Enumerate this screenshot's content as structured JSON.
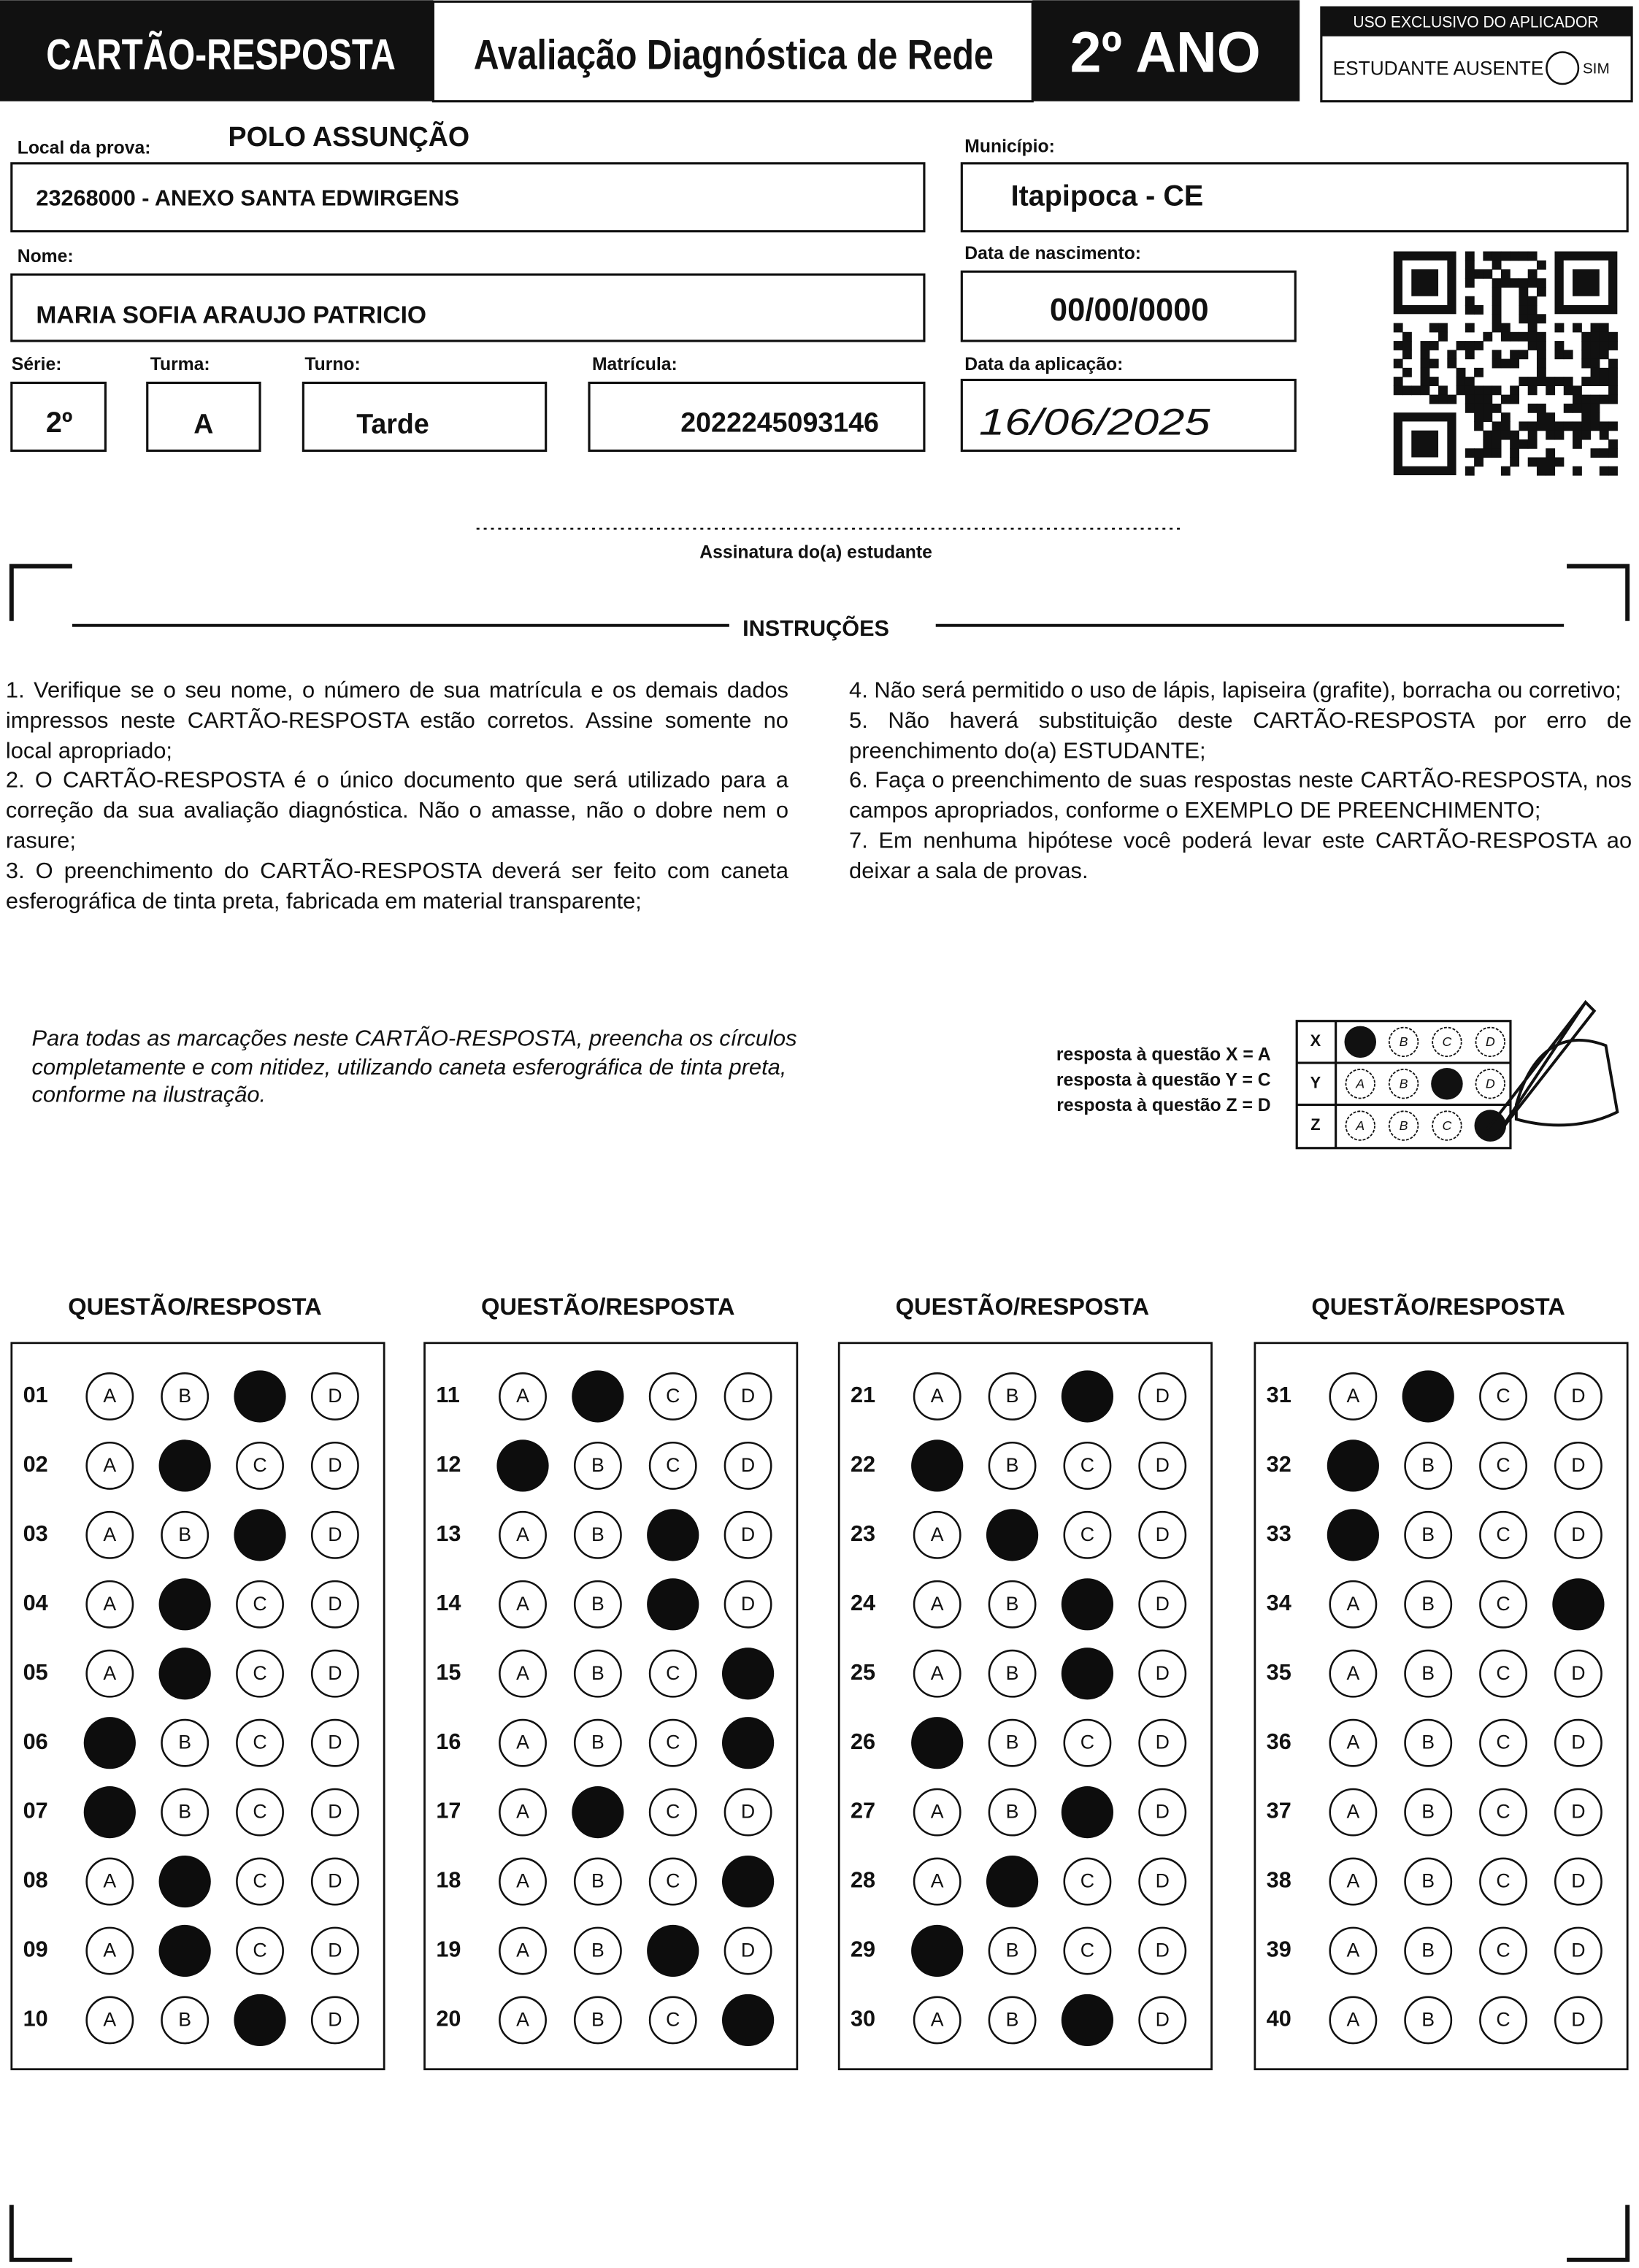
{
  "header": {
    "title": "CARTÃO-RESPOSTA",
    "subtitle": "Avaliação Diagnóstica de Rede",
    "grade": "2º ANO",
    "applicator_label": "USO EXCLUSIVO DO APLICADOR",
    "absent_label": "ESTUDANTE AUSENTE",
    "absent_option": "SIM"
  },
  "fields": {
    "local_label": "Local da prova:",
    "local_polo": "POLO ASSUNÇÃO",
    "local_value": "23268000 - ANEXO SANTA EDWIRGENS",
    "municipio_label": "Município:",
    "municipio_value": "Itapipoca - CE",
    "nome_label": "Nome:",
    "nome_value": "MARIA SOFIA ARAUJO PATRICIO",
    "nascimento_label": "Data de nascimento:",
    "nascimento_value": "00/00/0000",
    "serie_label": "Série:",
    "serie_value": "2º",
    "turma_label": "Turma:",
    "turma_value": "A",
    "turno_label": "Turno:",
    "turno_value": "Tarde",
    "matricula_label": "Matrícula:",
    "matricula_value": "2022245093146",
    "aplicacao_label": "Data da aplicação:",
    "aplicacao_value": "16/06/2025"
  },
  "signature_label": "Assinatura do(a) estudante",
  "instructions": {
    "title": "INSTRUÇÕES",
    "items": [
      "1. Verifique se o seu nome, o número de sua matrícula e os demais dados impressos neste CARTÃO-RESPOSTA estão corretos. Assine somente no local apropriado;",
      "2. O CARTÃO-RESPOSTA é o único documento que será utilizado para a correção da sua avaliação diagnóstica. Não o amasse, não o dobre nem o rasure;",
      "3. O preenchimento do CARTÃO-RESPOSTA deverá ser feito com caneta esferográfica de tinta preta, fabricada em material transparente;",
      "4. Não será permitido o uso de lápis, lapiseira (grafite), borracha ou corretivo;",
      "5. Não haverá substituição deste CARTÃO-RESPOSTA por erro de preenchimento do(a) ESTUDANTE;",
      "6. Faça o preenchimento de suas respostas neste CARTÃO-RESPOSTA, nos campos apropriados, conforme o EXEMPLO DE PREENCHIMENTO;",
      "7. Em nenhuma hipótese você poderá levar este CARTÃO-RESPOSTA ao deixar a sala de provas."
    ]
  },
  "example": {
    "text": "Para todas as marcações neste CARTÃO-RESPOSTA, preencha os círculos completamente e com nitidez, utilizando caneta esferográfica de tinta preta, conforme na ilustração.",
    "lines": [
      "resposta à questão X = A",
      "resposta à questão Y = C",
      "resposta à questão Z = D"
    ],
    "rows": [
      {
        "label": "X",
        "marked": "A"
      },
      {
        "label": "Y",
        "marked": "C"
      },
      {
        "label": "Z",
        "marked": "D"
      }
    ]
  },
  "answers": {
    "column_title": "QUESTÃO/RESPOSTA",
    "options": [
      "A",
      "B",
      "C",
      "D"
    ],
    "questions": [
      {
        "number": "01",
        "marked": "C"
      },
      {
        "number": "02",
        "marked": "B"
      },
      {
        "number": "03",
        "marked": "C"
      },
      {
        "number": "04",
        "marked": "B"
      },
      {
        "number": "05",
        "marked": "B"
      },
      {
        "number": "06",
        "marked": "A"
      },
      {
        "number": "07",
        "marked": "A"
      },
      {
        "number": "08",
        "marked": "B"
      },
      {
        "number": "09",
        "marked": "B"
      },
      {
        "number": "10",
        "marked": "C"
      },
      {
        "number": "11",
        "marked": "B"
      },
      {
        "number": "12",
        "marked": "A"
      },
      {
        "number": "13",
        "marked": "C"
      },
      {
        "number": "14",
        "marked": "C"
      },
      {
        "number": "15",
        "marked": "D"
      },
      {
        "number": "16",
        "marked": "D"
      },
      {
        "number": "17",
        "marked": "B"
      },
      {
        "number": "18",
        "marked": "D"
      },
      {
        "number": "19",
        "marked": "C"
      },
      {
        "number": "20",
        "marked": "D"
      },
      {
        "number": "21",
        "marked": "C"
      },
      {
        "number": "22",
        "marked": "A"
      },
      {
        "number": "23",
        "marked": "B"
      },
      {
        "number": "24",
        "marked": "C"
      },
      {
        "number": "25",
        "marked": "C"
      },
      {
        "number": "26",
        "marked": "A"
      },
      {
        "number": "27",
        "marked": "C"
      },
      {
        "number": "28",
        "marked": "B"
      },
      {
        "number": "29",
        "marked": "A"
      },
      {
        "number": "30",
        "marked": "C"
      },
      {
        "number": "31",
        "marked": "B"
      },
      {
        "number": "32",
        "marked": "A"
      },
      {
        "number": "33",
        "marked": "A"
      },
      {
        "number": "34",
        "marked": "D"
      },
      {
        "number": "35",
        "marked": null
      },
      {
        "number": "36",
        "marked": null
      },
      {
        "number": "37",
        "marked": null
      },
      {
        "number": "38",
        "marked": null
      },
      {
        "number": "39",
        "marked": null
      },
      {
        "number": "40",
        "marked": null
      }
    ]
  }
}
